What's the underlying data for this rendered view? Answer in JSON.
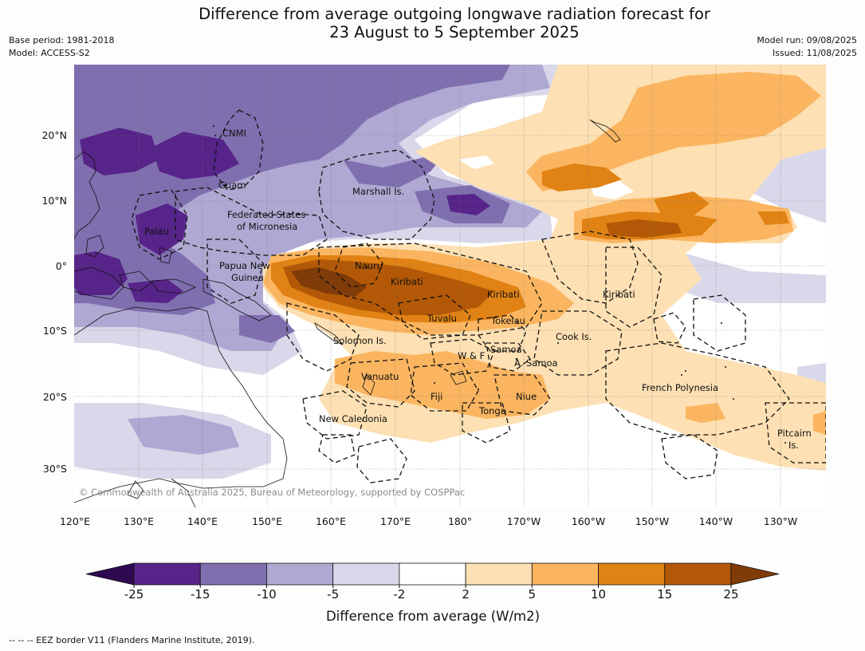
{
  "header": {
    "title_line1": "Difference from average outgoing longwave radiation forecast for",
    "title_line2": "23 August to 5 September 2025",
    "base_period": "Base period: 1981-2018",
    "model": "Model: ACCESS-S2",
    "model_run": "Model run: 09/08/2025",
    "issued": "Issued: 11/08/2025"
  },
  "map": {
    "lon_labels": [
      "120°E",
      "130°E",
      "140°E",
      "150°E",
      "160°E",
      "170°E",
      "180°",
      "170°W",
      "160°W",
      "150°W",
      "140°W",
      "130°W"
    ],
    "lat_labels": [
      "20°N",
      "10°N",
      "0°",
      "10°S",
      "20°S",
      "30°S"
    ],
    "places": [
      "CNMI",
      "Guam",
      "Marshall Is.",
      "Federated States",
      "of Micronesia",
      "Palau",
      "Papua New",
      "Guinea",
      "Nauru",
      "Kiribati",
      "Kiribati",
      "Kiribati",
      "Tuvalu",
      "Tokelau",
      "Solomon Is.",
      "W & F",
      "Samoa",
      "A. Samoa",
      "Cook Is.",
      "Vanuatu",
      "Fiji",
      "Niue",
      "Tonga",
      "French Polynesia",
      "New Caledonia",
      "Pitcairn",
      "Is."
    ],
    "copyright": "© Commonwealth of Australia 2025, Bureau of Meteorology, supported by COSPPac"
  },
  "colorbar": {
    "ticks": [
      "-25",
      "-15",
      "-10",
      "-5",
      "-2",
      "2",
      "5",
      "10",
      "15",
      "25"
    ],
    "label": "Difference from average (W/m2)",
    "colors": [
      "#2d0a4f",
      "#572489",
      "#7f6faf",
      "#aea8d2",
      "#d8d8ea",
      "#ffffff",
      "#fde0b3",
      "#fbb560",
      "#e08214",
      "#b35806",
      "#7f3b08"
    ]
  },
  "footnote": "--  --  -- EEZ border V11 (Flanders Marine Institute, 2019)."
}
